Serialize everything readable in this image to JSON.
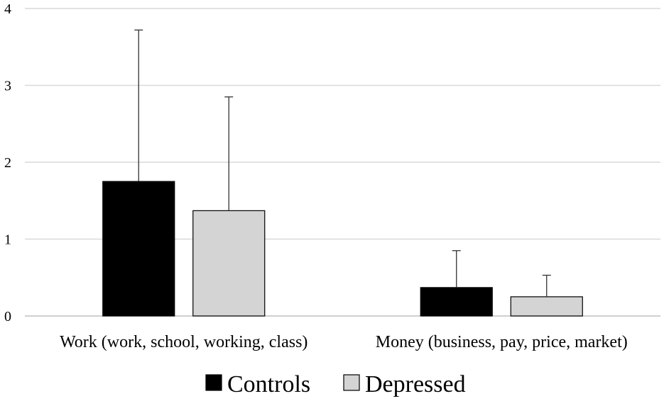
{
  "chart_data": {
    "type": "bar",
    "categories": [
      "Work (work, school, working, class)",
      "Money (business, pay, price, market)"
    ],
    "series": [
      {
        "name": "Controls",
        "values": [
          1.75,
          0.37
        ],
        "errors": [
          1.97,
          0.48
        ],
        "color": "#000000"
      },
      {
        "name": "Depressed",
        "values": [
          1.37,
          0.25
        ],
        "errors": [
          1.48,
          0.28
        ],
        "color": "#d4d4d4"
      }
    ],
    "yticks": [
      0,
      1,
      2,
      3,
      4
    ],
    "ylim": [
      0,
      4
    ],
    "grid": true,
    "legend": "bottom-center"
  }
}
